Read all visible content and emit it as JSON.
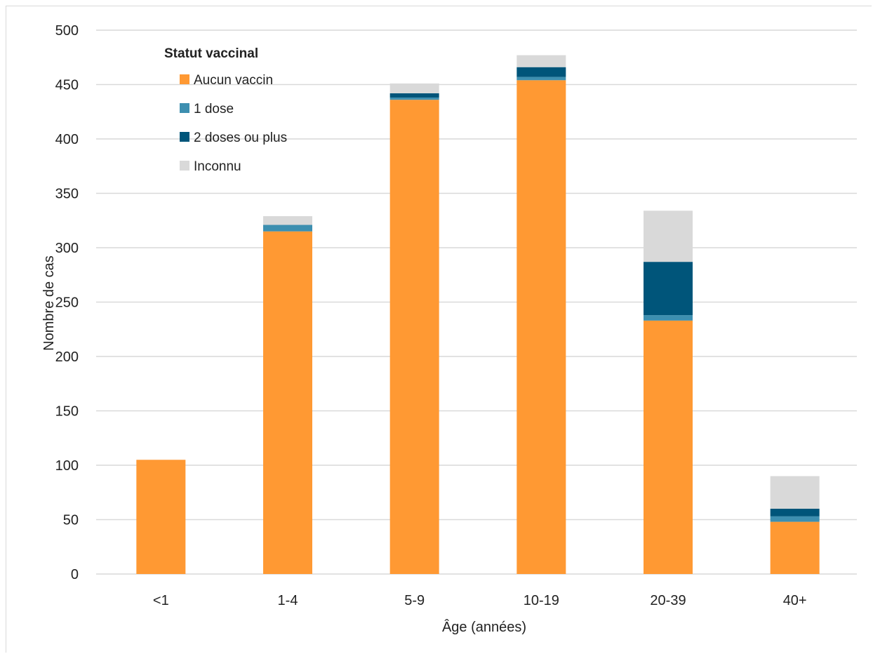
{
  "chart_data": {
    "type": "bar",
    "stacked": true,
    "categories": [
      "<1",
      "1-4",
      "5-9",
      "10-19",
      "20-39",
      "40+"
    ],
    "series": [
      {
        "name": "Aucun vaccin",
        "color": "#ff9933",
        "values": [
          105,
          315,
          436,
          454,
          233,
          48
        ]
      },
      {
        "name": "1 dose",
        "color": "#3d8fb0",
        "values": [
          0,
          6,
          2,
          3,
          5,
          5
        ]
      },
      {
        "name": "2 doses ou plus",
        "color": "#00557a",
        "values": [
          0,
          0,
          4,
          9,
          49,
          7
        ]
      },
      {
        "name": "Inconnu",
        "color": "#d9d9d9",
        "values": [
          0,
          8,
          9,
          11,
          47,
          30
        ]
      }
    ],
    "xlabel": "Âge (années)",
    "ylabel": "Nombre de cas",
    "ylim": [
      0,
      500
    ],
    "yticks": [
      0,
      50,
      100,
      150,
      200,
      250,
      300,
      350,
      400,
      450,
      500
    ],
    "legend_title": "Statut vaccinal",
    "legend_position": "top-left",
    "grid": true,
    "gridline_color": "#d9d9d9"
  }
}
